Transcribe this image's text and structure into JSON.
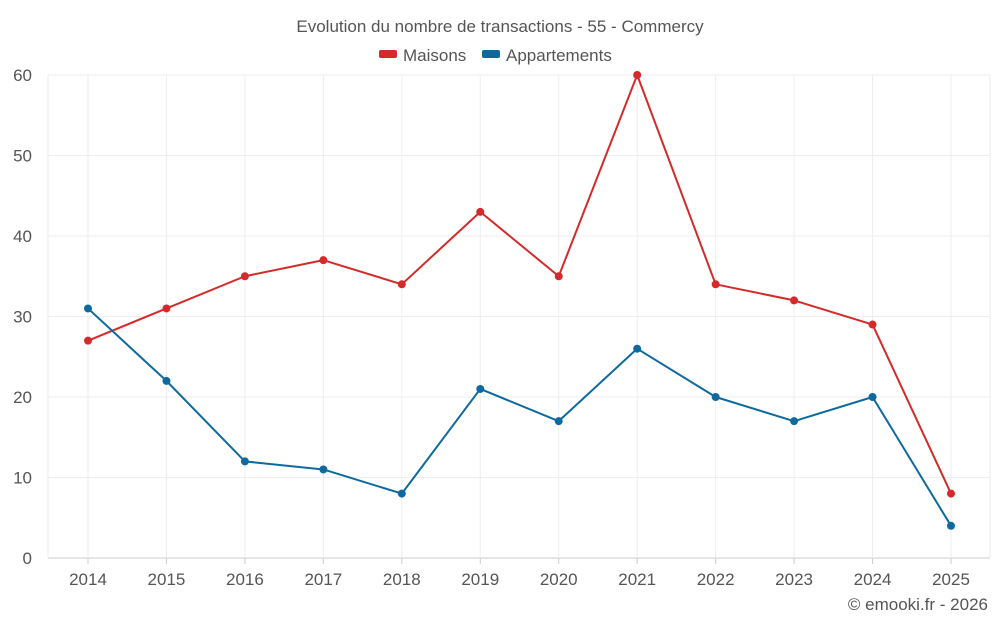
{
  "chart_data": {
    "type": "line",
    "title": "Evolution du nombre de transactions - 55 - Commercy",
    "categories": [
      "2014",
      "2015",
      "2016",
      "2017",
      "2018",
      "2019",
      "2020",
      "2021",
      "2022",
      "2023",
      "2024",
      "2025"
    ],
    "series": [
      {
        "name": "Maisons",
        "color": "#d42a2a",
        "values": [
          27,
          31,
          35,
          37,
          34,
          43,
          35,
          60,
          34,
          32,
          29,
          8
        ]
      },
      {
        "name": "Appartements",
        "color": "#0e6a9e",
        "values": [
          31,
          22,
          12,
          11,
          8,
          21,
          17,
          26,
          20,
          17,
          20,
          4
        ]
      }
    ],
    "xlabel": "",
    "ylabel": "",
    "ylim": [
      0,
      60
    ],
    "yticks": [
      0,
      10,
      20,
      30,
      40,
      50,
      60
    ],
    "grid": true,
    "legend_position": "top-center"
  },
  "credit": "© emooki.fr - 2026"
}
